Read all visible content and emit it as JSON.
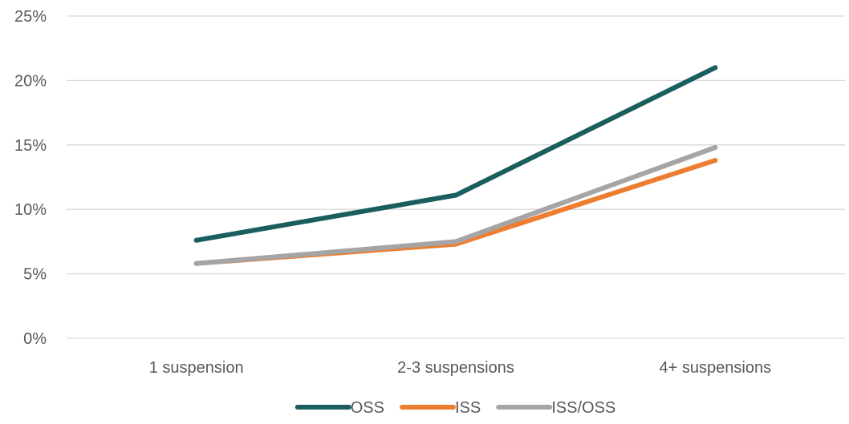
{
  "chart_data": {
    "type": "line",
    "categories": [
      "1 suspension",
      "2-3 suspensions",
      "4+ suspensions"
    ],
    "ylim": [
      0,
      25
    ],
    "yticks": [
      "0%",
      "5%",
      "10%",
      "15%",
      "20%",
      "25%"
    ],
    "grid": true,
    "legend": "bottom",
    "series": [
      {
        "name": "OSS",
        "color": "#1b5e5e",
        "values": [
          7.6,
          11.1,
          21.0
        ]
      },
      {
        "name": "ISS",
        "color": "#ed7d31",
        "values": [
          5.8,
          7.3,
          13.8
        ]
      },
      {
        "name": "ISS/OSS",
        "color": "#a5a5a5",
        "values": [
          5.8,
          7.5,
          14.8
        ]
      }
    ]
  }
}
